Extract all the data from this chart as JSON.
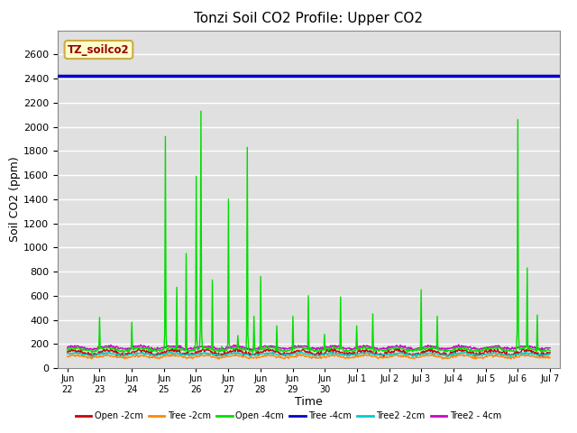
{
  "title": "Tonzi Soil CO2 Profile: Upper CO2",
  "xlabel": "Time",
  "ylabel": "Soil CO2 (ppm)",
  "ylim": [
    0,
    2800
  ],
  "yticks": [
    0,
    200,
    400,
    600,
    800,
    1000,
    1200,
    1400,
    1600,
    1800,
    2000,
    2200,
    2400,
    2600
  ],
  "bg_color": "#e0e0e0",
  "legend_label": "TZ_soilco2",
  "legend_box_facecolor": "#ffffcc",
  "legend_box_edgecolor": "#ccaa44",
  "legend_text_color": "#990000",
  "series": [
    {
      "label": "Open -2cm",
      "color": "#cc0000",
      "linewidth": 1.0
    },
    {
      "label": "Tree -2cm",
      "color": "#ff8800",
      "linewidth": 1.0
    },
    {
      "label": "Open -4cm",
      "color": "#00dd00",
      "linewidth": 1.0
    },
    {
      "label": "Tree -4cm",
      "color": "#0000cc",
      "linewidth": 2.5
    },
    {
      "label": "Tree2 -2cm",
      "color": "#00cccc",
      "linewidth": 1.0
    },
    {
      "label": "Tree2 - 4cm",
      "color": "#cc00cc",
      "linewidth": 1.0
    }
  ],
  "hline_value": 2420,
  "hline_color": "#0000cc",
  "hline_linewidth": 2.5,
  "xtick_labels": [
    "Jun\n22",
    "Jun\n23",
    "Jun\n24",
    "Jun\n25",
    "Jun\n26",
    "Jun\n27",
    "Jun\n28",
    "Jun\n29",
    "Jun\n30",
    "Jul 1",
    "Jul 2",
    "Jul 3",
    "Jul 4",
    "Jul 5",
    "Jul 6",
    "Jul 7"
  ],
  "xtick_labels_display": [
    "Jun\n22Jun",
    "23Jun",
    "24Jun",
    "25Jun",
    "26Jun",
    "27Jun",
    "28Jun",
    "29Jun",
    "30",
    "Jul 1",
    "Jul 2",
    "Jul 3",
    "Jul 4",
    "Jul 5",
    "Jul 6",
    "Jul 7"
  ],
  "grid_color": "#ffffff",
  "grid_linewidth": 1.0,
  "num_points": 720,
  "figsize": [
    6.4,
    4.8
  ],
  "dpi": 100
}
